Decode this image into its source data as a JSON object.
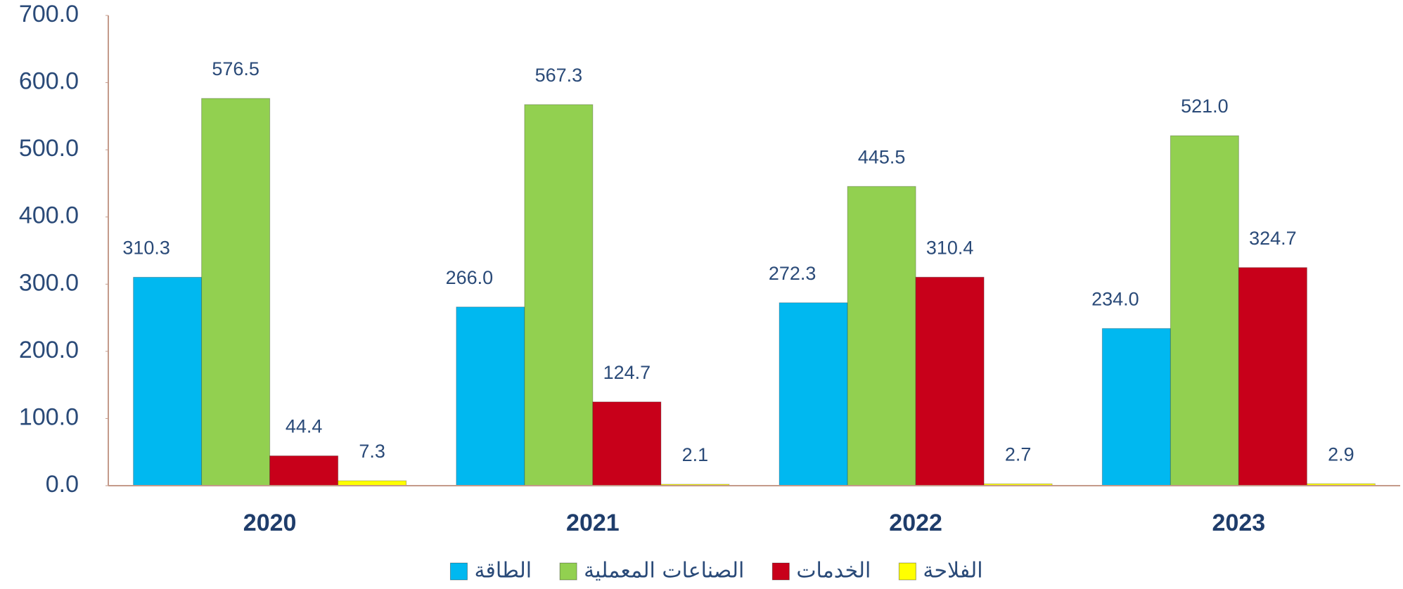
{
  "chart_data": {
    "type": "bar",
    "categories": [
      "2020",
      "2021",
      "2022",
      "2023"
    ],
    "series": [
      {
        "name": "الطاقة",
        "color": "#00b8f0",
        "values": [
          310.3,
          266.0,
          272.3,
          234.0
        ],
        "value_labels": [
          "310.3",
          "266.0",
          "272.3",
          "234.0"
        ]
      },
      {
        "name": "الصناعات المعملية",
        "color": "#92d050",
        "values": [
          576.5,
          567.3,
          445.5,
          521.0
        ],
        "value_labels": [
          "576.5",
          "567.3",
          "445.5",
          "521.0"
        ]
      },
      {
        "name": "الخدمات",
        "color": "#c8001a",
        "values": [
          44.4,
          124.7,
          310.4,
          324.7
        ],
        "value_labels": [
          "44.4",
          "124.7",
          "310.4",
          "324.7"
        ]
      },
      {
        "name": "الفلاحة",
        "color": "#ffff00",
        "values": [
          7.3,
          2.1,
          2.7,
          2.9
        ],
        "value_labels": [
          "7.3",
          "2.1",
          "2.7",
          "2.9"
        ]
      }
    ],
    "ylim": [
      0,
      700
    ],
    "yticks": [
      {
        "value": 0,
        "label": "0.0"
      },
      {
        "value": 100,
        "label": "100.0"
      },
      {
        "value": 200,
        "label": "200.0"
      },
      {
        "value": 300,
        "label": "300.0"
      },
      {
        "value": 400,
        "label": "400.0"
      },
      {
        "value": 500,
        "label": "500.0"
      },
      {
        "value": 600,
        "label": "600.0"
      },
      {
        "value": 700,
        "label": "700.0"
      }
    ],
    "legend": "bottom"
  }
}
